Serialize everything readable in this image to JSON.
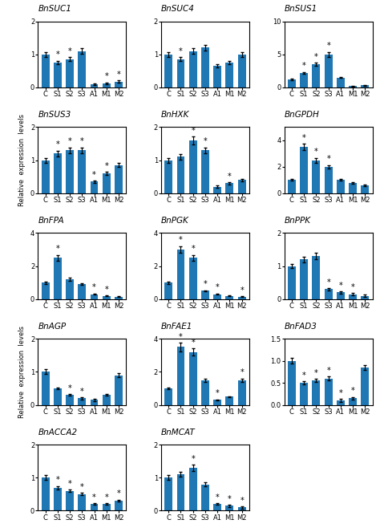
{
  "chart_data": [
    {
      "type": "bar",
      "title": "BnSUC1",
      "categories": [
        "C",
        "S1",
        "S2",
        "S3",
        "A1",
        "M1",
        "M2"
      ],
      "values": [
        1.0,
        0.75,
        0.85,
        1.1,
        0.1,
        0.12,
        0.18
      ],
      "errors": [
        0.07,
        0.0525,
        0.0595,
        0.077,
        0.03,
        0.03,
        0.03
      ],
      "ylim": [
        0,
        2
      ],
      "yticks": [
        0,
        1,
        2
      ],
      "annotations": [
        {
          "text": "*",
          "x": "S1"
        },
        {
          "text": "*",
          "x": "S2"
        },
        {
          "text": "*",
          "x": "M1"
        },
        {
          "text": "*",
          "x": "M2"
        }
      ]
    },
    {
      "type": "bar",
      "title": "BnSUC4",
      "categories": [
        "C",
        "S1",
        "S2",
        "S3",
        "A1",
        "M1",
        "M2"
      ],
      "values": [
        1.0,
        0.85,
        1.1,
        1.2,
        0.65,
        0.75,
        1.0
      ],
      "errors": [
        0.07,
        0.0595,
        0.077,
        0.084,
        0.0455,
        0.0525,
        0.07
      ],
      "ylim": [
        0,
        2
      ],
      "yticks": [
        0,
        1,
        2
      ],
      "annotations": [
        {
          "text": "*",
          "x": "S1"
        }
      ]
    },
    {
      "type": "bar",
      "title": "BnSUS1",
      "categories": [
        "C",
        "S1",
        "S2",
        "S3",
        "A1",
        "M1",
        "M2"
      ],
      "values": [
        1.2,
        2.2,
        3.5,
        5.0,
        1.5,
        0.2,
        0.3
      ],
      "errors": [
        0.084,
        0.154,
        0.245,
        0.35,
        0.105,
        0.03,
        0.03
      ],
      "ylim": [
        0,
        10
      ],
      "yticks": [
        0,
        5,
        10
      ],
      "annotations": [
        {
          "text": "*",
          "x": "S1"
        },
        {
          "text": "*",
          "x": "S2"
        },
        {
          "text": "*",
          "x": "S3"
        }
      ]
    },
    {
      "type": "bar",
      "title": "BnSUS3",
      "y_label": "Relative  expression  levels",
      "categories": [
        "C",
        "S1",
        "S2",
        "S3",
        "A1",
        "M1",
        "M2"
      ],
      "values": [
        1.0,
        1.2,
        1.3,
        1.3,
        0.35,
        0.6,
        0.85
      ],
      "errors": [
        0.07,
        0.084,
        0.091,
        0.091,
        0.03,
        0.042,
        0.0595
      ],
      "ylim": [
        0,
        2
      ],
      "yticks": [
        0,
        1,
        2
      ],
      "annotations": [
        {
          "text": "*",
          "x": "S1"
        },
        {
          "text": "*",
          "x": "S2"
        },
        {
          "text": "*",
          "x": "S3"
        },
        {
          "text": "*",
          "x": "A1"
        },
        {
          "text": "*",
          "x": "M1"
        }
      ]
    },
    {
      "type": "bar",
      "title": "BnHXK",
      "categories": [
        "C",
        "S1",
        "S2",
        "S3",
        "A1",
        "M1",
        "M2"
      ],
      "values": [
        1.0,
        1.1,
        1.6,
        1.3,
        0.2,
        0.3,
        0.4
      ],
      "errors": [
        0.07,
        0.077,
        0.112,
        0.091,
        0.03,
        0.03,
        0.03
      ],
      "ylim": [
        0,
        2
      ],
      "yticks": [
        0,
        1,
        2
      ],
      "annotations": [
        {
          "text": "*",
          "x": "S2"
        },
        {
          "text": "*",
          "x": "S3"
        },
        {
          "text": "*",
          "x": "M1"
        }
      ]
    },
    {
      "type": "bar",
      "title": "BnGPDH",
      "categories": [
        "C",
        "S1",
        "S2",
        "S3",
        "A1",
        "M1",
        "M2"
      ],
      "values": [
        1.0,
        3.5,
        2.5,
        2.0,
        1.0,
        0.8,
        0.6
      ],
      "errors": [
        0.07,
        0.245,
        0.175,
        0.14,
        0.07,
        0.056,
        0.042
      ],
      "ylim": [
        0,
        5
      ],
      "yticks": [
        0,
        2,
        4
      ],
      "annotations": [
        {
          "text": "*",
          "x": "S1"
        },
        {
          "text": "*",
          "x": "S2"
        },
        {
          "text": "*",
          "x": "S3"
        }
      ]
    },
    {
      "type": "bar",
      "title": "BnFPA",
      "categories": [
        "C",
        "S1",
        "S2",
        "S3",
        "A1",
        "M1",
        "M2"
      ],
      "values": [
        1.0,
        2.5,
        1.2,
        0.9,
        0.3,
        0.2,
        0.15
      ],
      "errors": [
        0.07,
        0.175,
        0.084,
        0.063,
        0.03,
        0.03,
        0.03
      ],
      "ylim": [
        0,
        4
      ],
      "yticks": [
        0,
        2,
        4
      ],
      "annotations": [
        {
          "text": "*",
          "x": "S1"
        },
        {
          "text": "*",
          "x": "A1"
        },
        {
          "text": "*",
          "x": "M1"
        }
      ]
    },
    {
      "type": "bar",
      "title": "BnPGK",
      "categories": [
        "C",
        "S1",
        "S2",
        "S3",
        "A1",
        "M1",
        "M2"
      ],
      "values": [
        1.0,
        3.0,
        2.5,
        0.5,
        0.3,
        0.2,
        0.15
      ],
      "errors": [
        0.07,
        0.21,
        0.175,
        0.035,
        0.03,
        0.03,
        0.03
      ],
      "ylim": [
        0,
        4
      ],
      "yticks": [
        0,
        2,
        4
      ],
      "annotations": [
        {
          "text": "*",
          "x": "S1"
        },
        {
          "text": "*",
          "x": "S2"
        },
        {
          "text": "*",
          "x": "S3"
        },
        {
          "text": "*",
          "x": "A1"
        },
        {
          "text": "*",
          "x": "M2"
        }
      ]
    },
    {
      "type": "bar",
      "title": "BnPPK",
      "categories": [
        "C",
        "S1",
        "S2",
        "S3",
        "A1",
        "M1",
        "M2"
      ],
      "values": [
        1.0,
        1.2,
        1.3,
        0.3,
        0.2,
        0.15,
        0.1
      ],
      "errors": [
        0.07,
        0.084,
        0.091,
        0.03,
        0.03,
        0.03,
        0.03
      ],
      "ylim": [
        0,
        2
      ],
      "yticks": [
        0,
        1,
        2
      ],
      "annotations": [
        {
          "text": "*",
          "x": "S3"
        },
        {
          "text": "*",
          "x": "A1"
        },
        {
          "text": "*",
          "x": "M1"
        }
      ]
    },
    {
      "type": "bar",
      "title": "BnAGP",
      "y_label": "Relative  expression  levels",
      "categories": [
        "C",
        "S1",
        "S2",
        "S3",
        "A1",
        "M1",
        "M2"
      ],
      "values": [
        1.0,
        0.5,
        0.3,
        0.2,
        0.15,
        0.3,
        0.9
      ],
      "errors": [
        0.07,
        0.035,
        0.03,
        0.03,
        0.03,
        0.03,
        0.063
      ],
      "ylim": [
        0,
        2
      ],
      "yticks": [
        0,
        1,
        2
      ],
      "annotations": [
        {
          "text": "*",
          "x": "S2"
        },
        {
          "text": "*",
          "x": "S3"
        }
      ]
    },
    {
      "type": "bar",
      "title": "BnFAE1",
      "categories": [
        "C",
        "S1",
        "S2",
        "S3",
        "A1",
        "M1",
        "M2"
      ],
      "values": [
        1.0,
        3.5,
        3.2,
        1.5,
        0.3,
        0.5,
        1.5
      ],
      "errors": [
        0.07,
        0.245,
        0.224,
        0.105,
        0.03,
        0.035,
        0.105
      ],
      "ylim": [
        0,
        4
      ],
      "yticks": [
        0,
        2,
        4
      ],
      "annotations": [
        {
          "text": "*",
          "x": "S1"
        },
        {
          "text": "*",
          "x": "S2"
        },
        {
          "text": "*",
          "x": "A1"
        },
        {
          "text": "*",
          "x": "M2"
        }
      ]
    },
    {
      "type": "bar",
      "title": "BnFAD3",
      "categories": [
        "C",
        "S1",
        "S2",
        "S3",
        "A1",
        "M1",
        "M2"
      ],
      "values": [
        1.0,
        0.5,
        0.55,
        0.6,
        0.1,
        0.15,
        0.85
      ],
      "errors": [
        0.07,
        0.035,
        0.0385,
        0.042,
        0.03,
        0.03,
        0.0595
      ],
      "ylim": [
        0,
        1.5
      ],
      "yticks": [
        {
          "value": 0,
          "label": "0.0"
        },
        0.5,
        {
          "value": 1.0,
          "label": "1.0"
        },
        1.5
      ],
      "annotations": [
        {
          "text": "*",
          "x": "S1"
        },
        {
          "text": "*",
          "x": "S2"
        },
        {
          "text": "*",
          "x": "S3"
        },
        {
          "text": "*",
          "x": "A1"
        },
        {
          "text": "*",
          "x": "M1"
        }
      ]
    },
    {
      "type": "bar",
      "title": "BnACCA2",
      "categories": [
        "C",
        "S1",
        "S2",
        "S3",
        "A1",
        "M1",
        "M2"
      ],
      "values": [
        1.0,
        0.7,
        0.6,
        0.5,
        0.2,
        0.2,
        0.3
      ],
      "errors": [
        0.07,
        0.049,
        0.042,
        0.035,
        0.03,
        0.03,
        0.03
      ],
      "ylim": [
        0,
        2
      ],
      "yticks": [
        0,
        1,
        2
      ],
      "annotations": [
        {
          "text": "*",
          "x": "S1"
        },
        {
          "text": "*",
          "x": "S2"
        },
        {
          "text": "*",
          "x": "S3"
        },
        {
          "text": "*",
          "x": "A1"
        },
        {
          "text": "*",
          "x": "M1"
        },
        {
          "text": "*",
          "x": "M2"
        }
      ]
    },
    {
      "type": "bar",
      "title": "BnMCAT",
      "categories": [
        "C",
        "S1",
        "S2",
        "S3",
        "A1",
        "M1",
        "M2"
      ],
      "values": [
        1.0,
        1.1,
        1.3,
        0.8,
        0.2,
        0.15,
        0.1
      ],
      "errors": [
        0.07,
        0.077,
        0.091,
        0.056,
        0.03,
        0.03,
        0.03
      ],
      "ylim": [
        0,
        2
      ],
      "yticks": [
        0,
        1,
        2
      ],
      "annotations": [
        {
          "text": "*",
          "x": "S2"
        },
        {
          "text": "*",
          "x": "A1"
        },
        {
          "text": "*",
          "x": "M1"
        },
        {
          "text": "*",
          "x": "M2"
        }
      ]
    }
  ]
}
